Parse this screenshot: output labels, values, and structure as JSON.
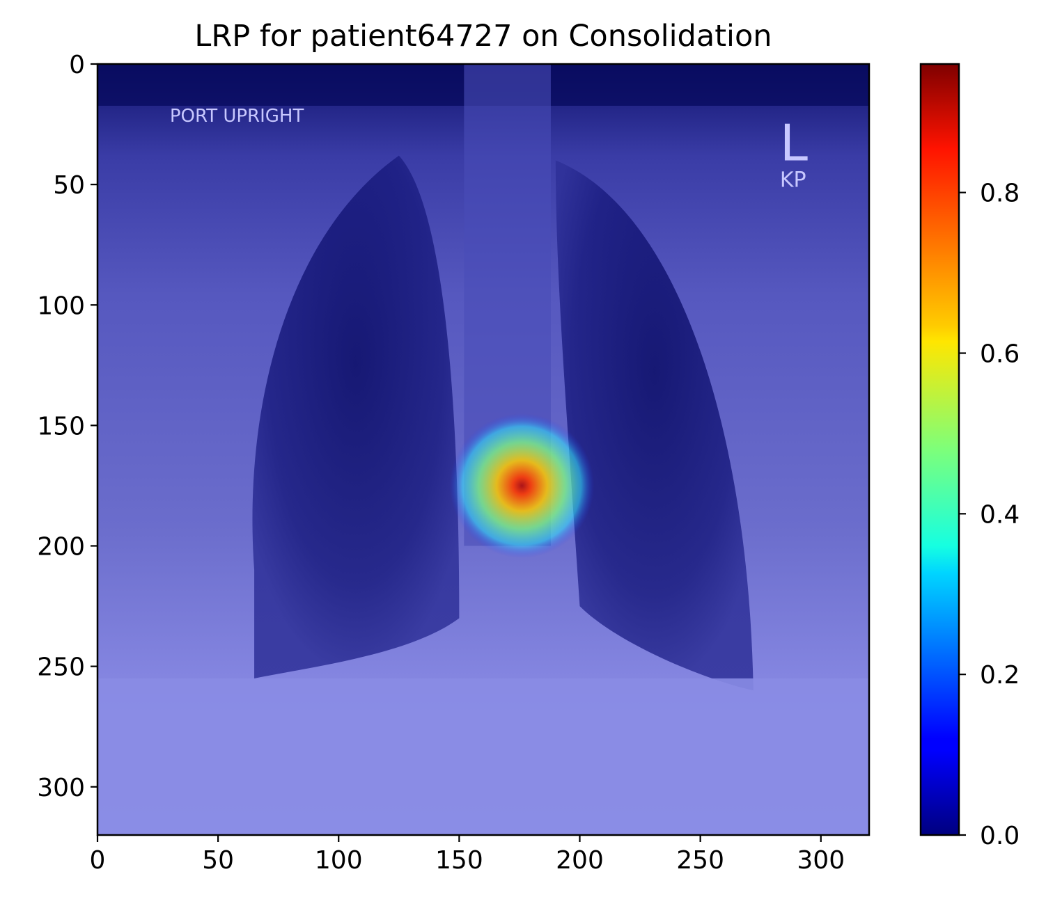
{
  "chart_data": {
    "type": "heatmap",
    "title": "LRP for patient64727 on Consolidation",
    "xlabel": "",
    "ylabel": "",
    "x_ticks": [
      0,
      50,
      100,
      150,
      200,
      250,
      300
    ],
    "y_ticks": [
      0,
      50,
      100,
      150,
      200,
      250,
      300
    ],
    "xlim": [
      0,
      320
    ],
    "ylim": [
      320,
      0
    ],
    "colorbar": {
      "colormap": "jet",
      "range": [
        0.0,
        0.96
      ],
      "ticks": [
        0.0,
        0.2,
        0.4,
        0.6,
        0.8
      ],
      "tick_labels": [
        "0.0",
        "0.2",
        "0.4",
        "0.6",
        "0.8"
      ]
    },
    "background_image": "chest x-ray (frontal, portable upright)",
    "image_annotations": [
      "PORT UPRIGHT",
      "L",
      "KP"
    ],
    "hotspot": {
      "center_x": 176,
      "center_y": 175,
      "peak_value": 0.96,
      "radius": 30
    },
    "colors": {
      "jet_low": "#00007f",
      "jet_high": "#7f0000"
    }
  }
}
